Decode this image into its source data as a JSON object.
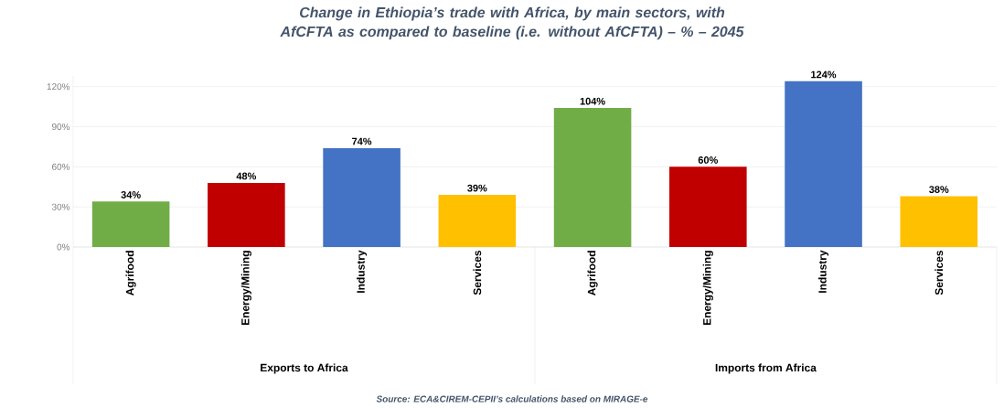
{
  "chart_data": {
    "type": "bar",
    "title": "Change in Ethiopia’s trade with Africa, by main sectors, with AfCFTA as compared to baseline (i.e. without AfCFTA) – % – 2045",
    "categories": [
      "Agrifood",
      "Energy/Mining",
      "Industry",
      "Services",
      "Agrifood",
      "Energy/Mining",
      "Industry",
      "Services"
    ],
    "values": [
      34,
      48,
      74,
      39,
      104,
      60,
      124,
      38
    ],
    "value_labels": [
      "34%",
      "48%",
      "74%",
      "39%",
      "104%",
      "60%",
      "124%",
      "38%"
    ],
    "colors": [
      "#70ad47",
      "#c00000",
      "#4472c4",
      "#ffc000",
      "#70ad47",
      "#c00000",
      "#4472c4",
      "#ffc000"
    ],
    "ylim": [
      0,
      128
    ],
    "yticks": [
      {
        "value": 0,
        "label": "0%"
      },
      {
        "value": 30,
        "label": "30%"
      },
      {
        "value": 60,
        "label": "60%"
      },
      {
        "value": 90,
        "label": "90%"
      },
      {
        "value": 120,
        "label": "120%"
      }
    ],
    "grid": "y",
    "annotations": [
      "Exports to Africa",
      "Imports from Africa",
      "Source: ECA&CIREM-CEPII’s calculations based on MIRAGE-e"
    ]
  }
}
